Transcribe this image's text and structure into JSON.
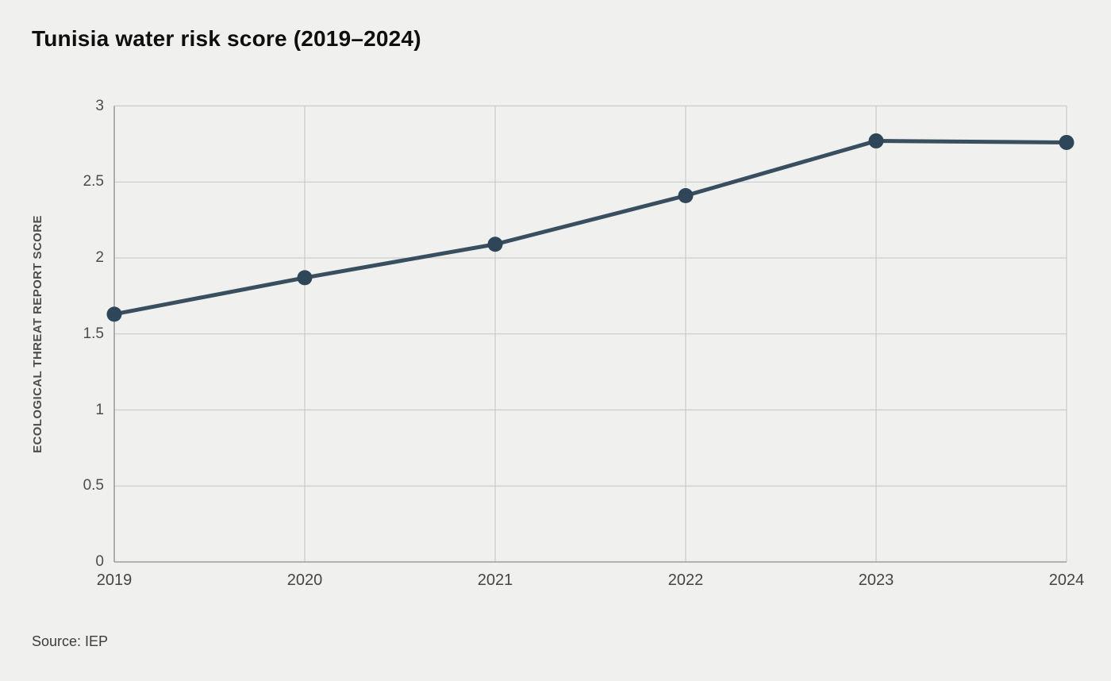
{
  "title": "Tunisia water risk score (2019–2024)",
  "source": "Source: IEP",
  "chart_data": {
    "type": "line",
    "title": "Tunisia water risk score (2019–2024)",
    "series_name": "Tunisia water risk score",
    "categories": [
      "2019",
      "2020",
      "2021",
      "2022",
      "2023",
      "2024"
    ],
    "values": [
      1.63,
      1.87,
      2.09,
      2.41,
      2.77,
      2.76
    ],
    "xlabel": "",
    "ylabel": "ECOLOGICAL THREAT REPORT SCORE",
    "ylim": [
      0,
      3
    ],
    "y_tick_labels": [
      "0",
      "0.5",
      "1",
      "1.5",
      "2",
      "2.5",
      "3"
    ],
    "grid": true,
    "legend": "none",
    "marker": "circle"
  },
  "colors": {
    "background": "#f0f0ee",
    "line": "#2e4657",
    "marker": "#2e4657",
    "gridline": "#c6c6c6",
    "axis": "#8c8c8c",
    "title_text": "#0f0f0f",
    "tick_text": "#4d4d4d",
    "axis_label_text": "#4d4d4d",
    "source_text": "#3c3c3c"
  }
}
